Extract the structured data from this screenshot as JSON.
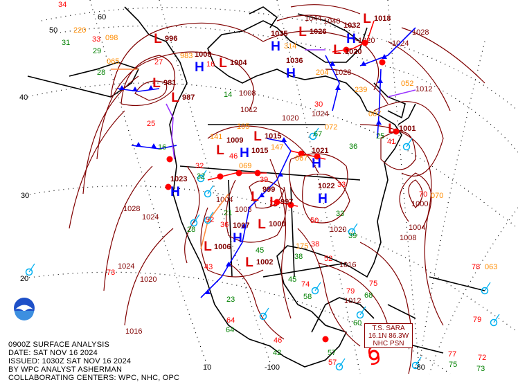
{
  "info_block": {
    "line1": "0900Z SURFACE ANALYSIS",
    "line2": "DATE: SAT NOV 16 2024",
    "line3": "ISSUED: 1030Z SAT NOV 16 2024",
    "line4": "BY WPC ANALYST ASHERMAN",
    "line5": "COLLABORATING CENTERS: WPC, NHC, OPC"
  },
  "tropical_box": {
    "line1": "T.S. SARA",
    "line2": "16.1N 86.3W",
    "line3": "NHC PSN"
  },
  "logo": "NOAA",
  "grid_labels": [
    "60",
    "50",
    "40",
    "30",
    "20",
    "10",
    "-100",
    "-80"
  ],
  "pressure_centers": [
    {
      "type": "L",
      "value": "996"
    },
    {
      "type": "L",
      "value": "981"
    },
    {
      "type": "L",
      "value": "987"
    },
    {
      "type": "H",
      "value": "1008"
    },
    {
      "type": "L",
      "value": "1004"
    },
    {
      "type": "L",
      "value": "1009"
    },
    {
      "type": "H",
      "value": "1015"
    },
    {
      "type": "L",
      "value": "1015"
    },
    {
      "type": "H",
      "value": "1021"
    },
    {
      "type": "H",
      "value": "1022"
    },
    {
      "type": "L",
      "value": "999"
    },
    {
      "type": "L",
      "value": "997"
    },
    {
      "type": "L",
      "value": "1000"
    },
    {
      "type": "H",
      "value": "1007"
    },
    {
      "type": "L",
      "value": "1006"
    },
    {
      "type": "L",
      "value": "1002"
    },
    {
      "type": "H",
      "value": "1023"
    },
    {
      "type": "L",
      "value": "1026"
    },
    {
      "type": "H",
      "value": "1032"
    },
    {
      "type": "L",
      "value": "1020"
    },
    {
      "type": "H",
      "value": "1035"
    },
    {
      "type": "H",
      "value": "1036"
    },
    {
      "type": "L",
      "value": "1018"
    },
    {
      "type": "L",
      "value": "1001"
    }
  ],
  "isobar_labels": [
    "1044",
    "1040",
    "1024",
    "1028",
    "1012",
    "1004",
    "1008",
    "1000",
    "1024",
    "1020",
    "1016",
    "1028",
    "1024",
    "1028",
    "1024",
    "1020",
    "1012",
    "1008",
    "1012",
    "1016",
    "1020",
    "1020",
    "1004",
    "1008"
  ],
  "station_temps": [
    "34",
    "33",
    "25",
    "32",
    "39",
    "46",
    "33",
    "50",
    "52",
    "36",
    "43",
    "38",
    "52",
    "74",
    "75",
    "79",
    "57",
    "46",
    "70",
    "73",
    "78",
    "77",
    "72",
    "79",
    "64",
    "27",
    "16",
    "41",
    "30"
  ],
  "station_dewpoints": [
    "31",
    "29",
    "28",
    "16",
    "32",
    "28",
    "21",
    "25",
    "33",
    "45",
    "38",
    "45",
    "58",
    "68",
    "64",
    "42",
    "75",
    "73",
    "67",
    "57",
    "36",
    "39",
    "14",
    "23",
    "60"
  ],
  "station_pressures": [
    "220",
    "098",
    "065",
    "141",
    "069",
    "175",
    "067",
    "314",
    "204",
    "239",
    "007",
    "052",
    "070",
    "983",
    "105",
    "147",
    "072",
    "063"
  ],
  "colors": {
    "isobar": "#800000",
    "cold_front": "#0000ff",
    "warm_front": "#ff0000",
    "occluded_front": "#9933ff",
    "trough": "#ff8c40",
    "temperature": "#ff0000",
    "dewpoint": "#008000",
    "pressure_tendency": "#ff8c00",
    "station": "#00b0f0"
  }
}
